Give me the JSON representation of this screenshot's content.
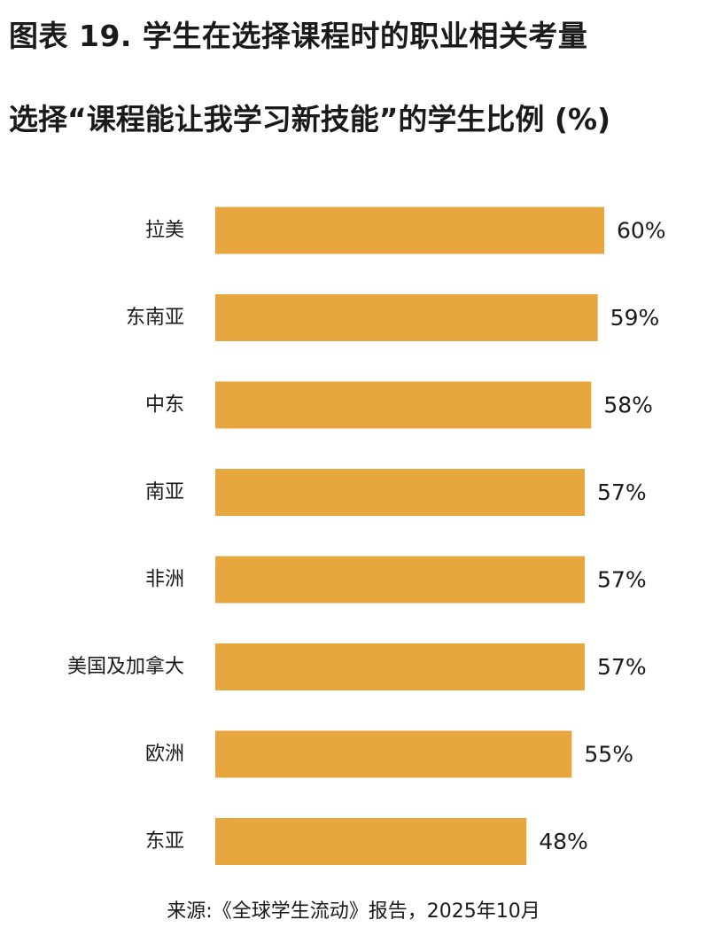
{
  "header": {
    "title": "图表 19. 学生在选择课程时的职业相关考量",
    "subtitle": "选择“课程能让我学习新技能”的学生比例 (%)"
  },
  "footer": {
    "source": "来源:《全球学生流动》报告，2025年10月"
  },
  "colors": {
    "bar": "#E8A63E",
    "text": "#1a1a1a",
    "background": "#ffffff"
  },
  "chart_data": {
    "type": "bar",
    "orientation": "horizontal",
    "categories": [
      "拉美",
      "东南亚",
      "中东",
      "南亚",
      "非洲",
      "美国及加拿大",
      "欧洲",
      "东亚"
    ],
    "values": [
      60,
      59,
      58,
      57,
      57,
      57,
      55,
      48
    ],
    "value_labels": [
      "60%",
      "59%",
      "58%",
      "57%",
      "57%",
      "57%",
      "55%",
      "48%"
    ],
    "title": "选择“课程能让我学习新技能”的学生比例 (%)",
    "xlabel": "",
    "ylabel": "",
    "xlim": [
      0,
      60
    ],
    "grid": false,
    "legend": "none"
  }
}
